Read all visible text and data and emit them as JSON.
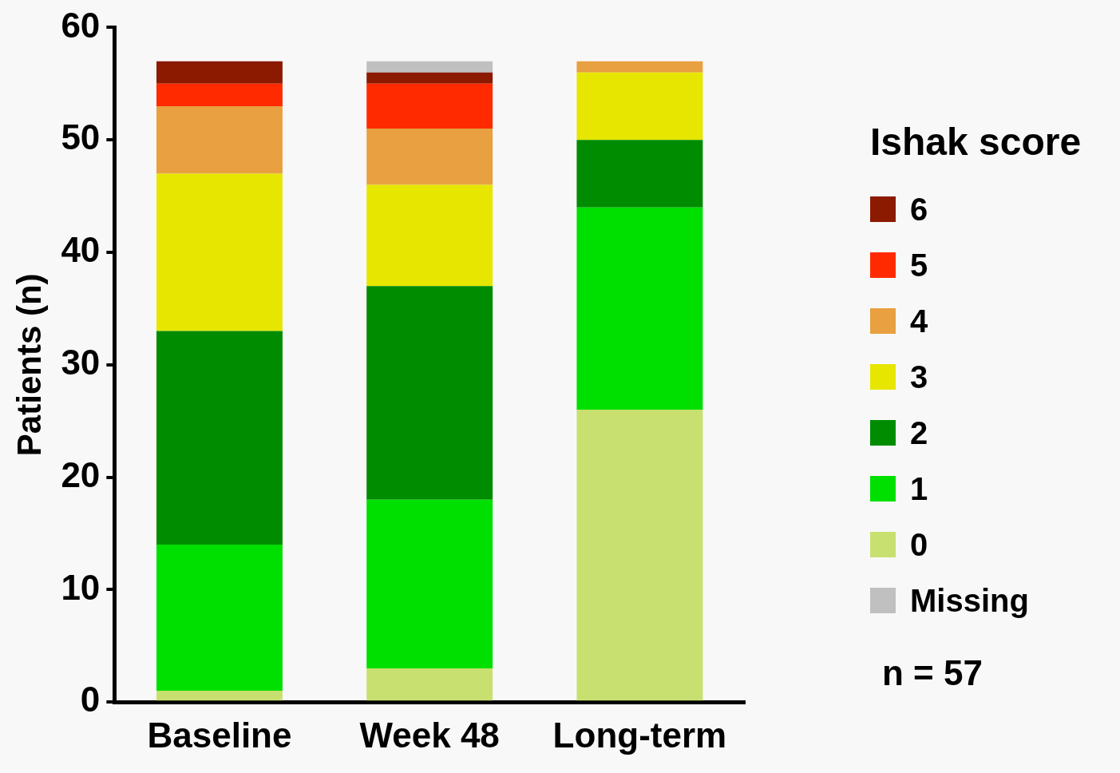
{
  "chart_data": {
    "type": "bar",
    "stacked": true,
    "ylabel": "Patients (n)",
    "legend_title": "Ishak score",
    "categories": [
      "Baseline",
      "Week 48",
      "Long-term"
    ],
    "series": [
      {
        "name": "0",
        "color": "#c8e070",
        "values": [
          1,
          3,
          26
        ]
      },
      {
        "name": "1",
        "color": "#00e000",
        "values": [
          13,
          15,
          18
        ]
      },
      {
        "name": "2",
        "color": "#008c00",
        "values": [
          19,
          19,
          6
        ]
      },
      {
        "name": "3",
        "color": "#e6e600",
        "values": [
          14,
          9,
          6
        ]
      },
      {
        "name": "4",
        "color": "#e8a040",
        "values": [
          6,
          5,
          1
        ]
      },
      {
        "name": "5",
        "color": "#ff2a00",
        "values": [
          2,
          4,
          0
        ]
      },
      {
        "name": "6",
        "color": "#8b1a00",
        "values": [
          2,
          1,
          0
        ]
      },
      {
        "name": "Missing",
        "color": "#c0c0c0",
        "values": [
          0,
          1,
          0
        ]
      }
    ],
    "ylim": [
      0,
      60
    ],
    "yticks": [
      0,
      10,
      20,
      30,
      40,
      50,
      60
    ],
    "grid": false,
    "legend": "right",
    "annotations": [
      "n = 57"
    ]
  }
}
